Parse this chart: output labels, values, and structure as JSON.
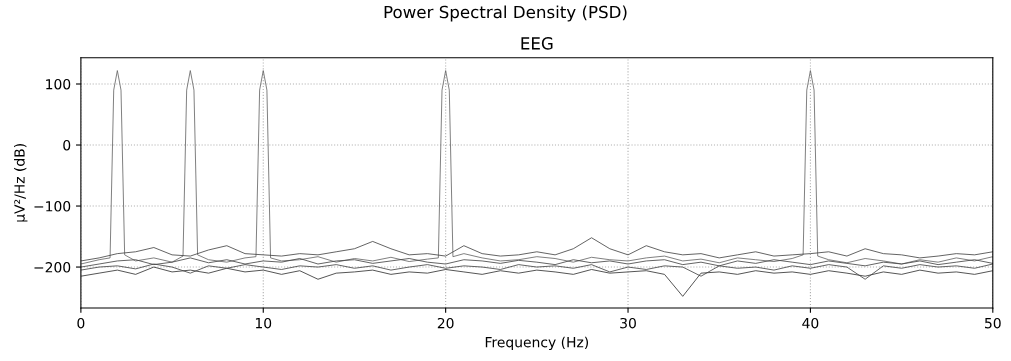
{
  "chart_data": {
    "type": "line",
    "title": "Power Spectral Density (PSD)",
    "subtitle": "EEG",
    "xlabel": "Frequency (Hz)",
    "ylabel": "µV²/Hz (dB)",
    "xlim": [
      0,
      50
    ],
    "ylim": [
      -267,
      143
    ],
    "xticks": [
      0,
      10,
      20,
      30,
      40,
      50
    ],
    "yticks": [
      -200,
      -100,
      0,
      100
    ],
    "grid": true,
    "line_style": "solid",
    "marker": "none",
    "x": [
      0,
      1,
      2,
      3,
      4,
      5,
      6,
      7,
      8,
      9,
      10,
      11,
      12,
      13,
      14,
      15,
      16,
      17,
      18,
      19,
      20,
      21,
      22,
      23,
      24,
      25,
      26,
      27,
      28,
      29,
      30,
      31,
      32,
      33,
      34,
      35,
      36,
      37,
      38,
      39,
      40,
      41,
      42,
      43,
      44,
      45,
      46,
      47,
      48,
      49,
      50
    ],
    "series": [
      {
        "color": "#666666",
        "x": [
          0,
          1,
          1.6,
          1.8,
          2,
          2.2,
          2.4,
          3,
          4,
          5,
          5.6,
          5.8,
          6,
          6.2,
          6.4,
          7,
          8,
          9,
          9.6,
          9.8,
          10,
          10.2,
          10.4,
          11,
          12,
          13,
          14,
          15,
          16,
          17,
          18,
          19,
          19.6,
          19.8,
          20,
          20.2,
          20.4,
          21,
          22,
          23,
          24,
          25,
          26,
          27,
          28,
          29,
          30,
          31,
          32,
          33,
          34,
          35,
          36,
          37,
          38,
          39,
          39.6,
          39.8,
          40,
          40.2,
          40.4,
          41,
          42,
          43,
          44,
          45,
          46,
          47,
          48,
          49,
          50
        ],
        "values": [
          -195,
          -188,
          -185,
          90,
          122,
          90,
          -180,
          -190,
          -185,
          -192,
          -182,
          90,
          122,
          90,
          -180,
          -188,
          -192,
          -185,
          -183,
          90,
          122,
          90,
          -185,
          -190,
          -188,
          -183,
          -192,
          -186,
          -190,
          -184,
          -191,
          -187,
          -185,
          90,
          122,
          90,
          -183,
          -178,
          -185,
          -190,
          -188,
          -183,
          -186,
          -192,
          -184,
          -188,
          -190,
          -185,
          -182,
          -190,
          -187,
          -193,
          -185,
          -188,
          -191,
          -186,
          -180,
          90,
          122,
          90,
          -182,
          -188,
          -193,
          -186,
          -190,
          -195,
          -188,
          -192,
          -185,
          -190,
          -183
        ]
      },
      {
        "color": "#444444",
        "values": [
          -190,
          -185,
          -178,
          -175,
          -168,
          -180,
          -182,
          -172,
          -165,
          -178,
          -180,
          -182,
          -178,
          -180,
          -175,
          -170,
          -158,
          -170,
          -180,
          -178,
          -182,
          -165,
          -178,
          -182,
          -180,
          -175,
          -180,
          -170,
          -152,
          -170,
          -180,
          -165,
          -175,
          -180,
          -178,
          -185,
          -180,
          -175,
          -182,
          -180,
          -178,
          -175,
          -182,
          -170,
          -178,
          -180,
          -185,
          -182,
          -178,
          -180,
          -175
        ]
      },
      {
        "color": "#444444",
        "values": [
          -200,
          -195,
          -190,
          -188,
          -196,
          -192,
          -185,
          -193,
          -188,
          -195,
          -190,
          -192,
          -186,
          -195,
          -190,
          -188,
          -194,
          -190,
          -186,
          -192,
          -195,
          -188,
          -190,
          -194,
          -189,
          -192,
          -196,
          -188,
          -193,
          -190,
          -195,
          -190,
          -188,
          -196,
          -192,
          -198,
          -190,
          -194,
          -188,
          -192,
          -196,
          -190,
          -194,
          -198,
          -192,
          -195,
          -190,
          -196,
          -192,
          -188,
          -194
        ]
      },
      {
        "color": "#333333",
        "values": [
          -215,
          -210,
          -205,
          -212,
          -200,
          -208,
          -205,
          -210,
          -202,
          -208,
          -205,
          -212,
          -206,
          -220,
          -210,
          -208,
          -205,
          -212,
          -208,
          -210,
          -204,
          -208,
          -212,
          -206,
          -210,
          -205,
          -208,
          -212,
          -204,
          -210,
          -208,
          -206,
          -212,
          -248,
          -210,
          -208,
          -212,
          -206,
          -210,
          -208,
          -212,
          -206,
          -210,
          -215,
          -208,
          -212,
          -205,
          -210,
          -208,
          -212,
          -206
        ]
      },
      {
        "color": "#444444",
        "values": [
          -205,
          -200,
          -198,
          -203,
          -195,
          -200,
          -210,
          -198,
          -202,
          -196,
          -200,
          -204,
          -198,
          -200,
          -196,
          -202,
          -198,
          -205,
          -200,
          -196,
          -202,
          -198,
          -200,
          -204,
          -196,
          -200,
          -198,
          -202,
          -196,
          -208,
          -200,
          -204,
          -198,
          -200,
          -215,
          -198,
          -202,
          -200,
          -205,
          -198,
          -202,
          -196,
          -200,
          -220,
          -198,
          -202,
          -196,
          -200,
          -198,
          -202,
          -195
        ]
      }
    ]
  }
}
